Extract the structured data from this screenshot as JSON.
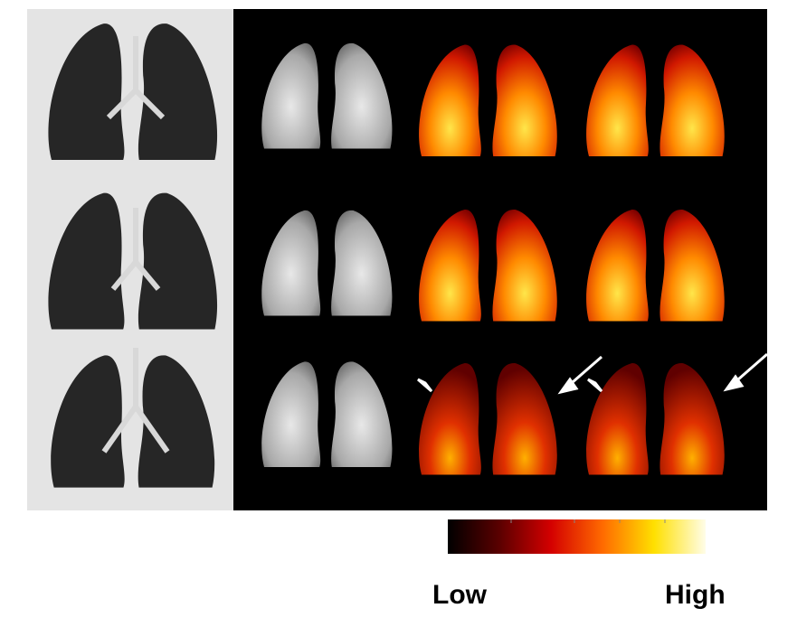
{
  "colorbar": {
    "low_label": "Low",
    "high_label": "High"
  }
}
